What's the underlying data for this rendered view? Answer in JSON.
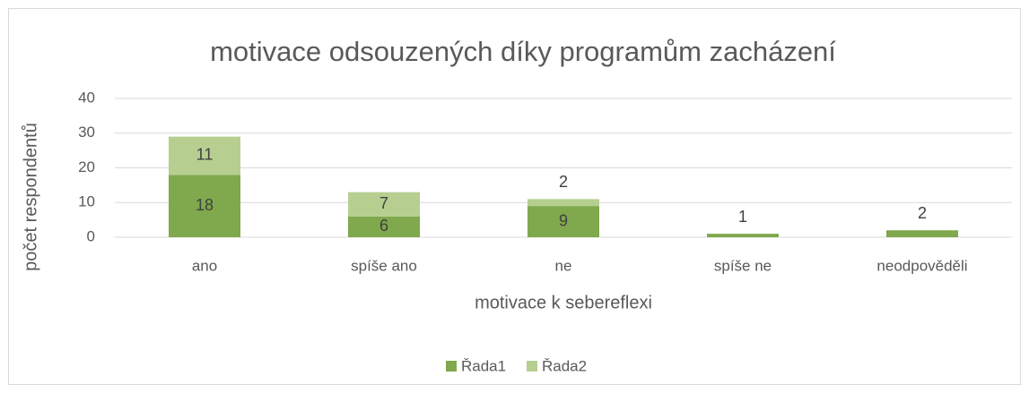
{
  "chart_data": {
    "type": "bar",
    "stacked": true,
    "title": "motivace odsouzených díky programům zacházení",
    "x_label": "motivace k sebereflexi",
    "y_label": "počet respondentů",
    "categories": [
      "ano",
      "spíše ano",
      "ne",
      "spíše ne",
      "neodpověděli"
    ],
    "series": [
      {
        "name": "Řada1",
        "color": "#80a84c",
        "values": [
          18,
          6,
          9,
          1,
          2
        ]
      },
      {
        "name": "Řada2",
        "color": "#b6cf91",
        "values": [
          11,
          7,
          2,
          null,
          null
        ]
      }
    ],
    "ylim": [
      0,
      40
    ],
    "yticks": [
      0,
      10,
      20,
      30,
      40
    ],
    "grid": true,
    "legend": "bottom"
  }
}
